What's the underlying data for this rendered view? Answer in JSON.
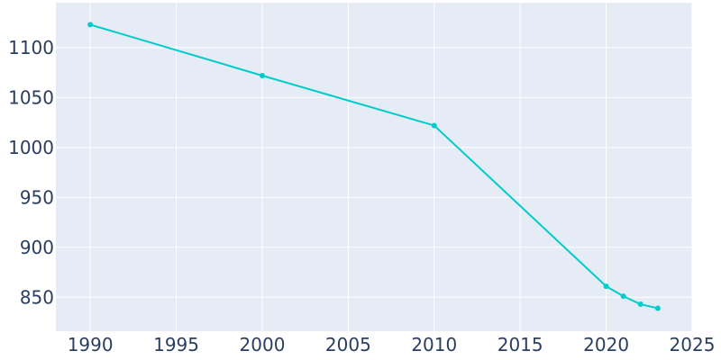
{
  "chart_data": {
    "type": "line",
    "title": "",
    "xlabel": "",
    "ylabel": "",
    "xlim": [
      1988,
      2025
    ],
    "ylim": [
      816,
      1145
    ],
    "grid": true,
    "colors": {
      "plot_bg": "#e5ecf6",
      "grid": "#ffffff",
      "line": "#00cccc",
      "tick_text": "#2a3f5f"
    },
    "x_ticks": [
      1990,
      1995,
      2000,
      2005,
      2010,
      2015,
      2020,
      2025
    ],
    "y_ticks": [
      850,
      900,
      950,
      1000,
      1050,
      1100
    ],
    "x_tick_labels": [
      "1990",
      "1995",
      "2000",
      "2005",
      "2010",
      "2015",
      "2020",
      "2025"
    ],
    "y_tick_labels": [
      "850",
      "900",
      "950",
      "1000",
      "1050",
      "1100"
    ],
    "series": [
      {
        "x": [
          1990,
          2000,
          2010,
          2020,
          2021,
          2022,
          2023
        ],
        "y": [
          1123,
          1072,
          1022,
          861,
          851,
          843,
          839
        ]
      }
    ]
  }
}
